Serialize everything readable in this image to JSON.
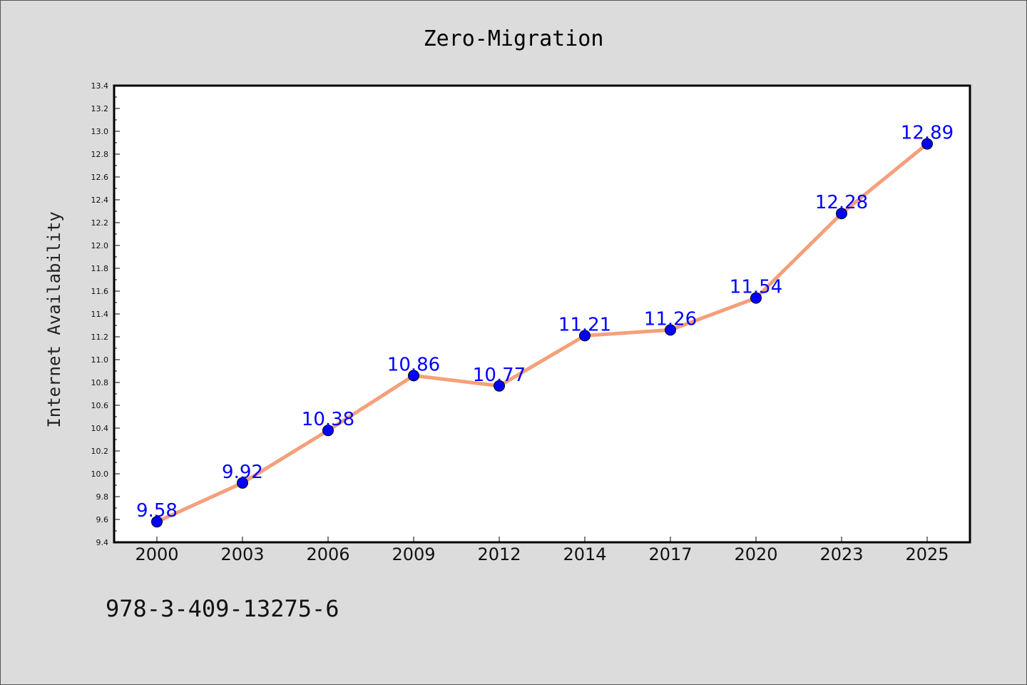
{
  "chart_data": {
    "type": "line",
    "title": "Zero-Migration",
    "xlabel": "",
    "ylabel": "Internet Availability",
    "categories": [
      "2000",
      "2003",
      "2006",
      "2009",
      "2012",
      "2014",
      "2017",
      "2020",
      "2023",
      "2025"
    ],
    "series": [
      {
        "values": [
          9.58,
          9.92,
          10.38,
          10.86,
          10.77,
          11.21,
          11.26,
          11.54,
          12.28,
          12.89
        ],
        "line_color": "#f4a07a",
        "marker_color": "#0000ff"
      }
    ],
    "data_labels": [
      "9.58",
      "9.92",
      "10.38",
      "10.86",
      "10.77",
      "11.21",
      "11.26",
      "11.54",
      "12.28",
      "12.89"
    ],
    "ylim": [
      9.4,
      13.4
    ],
    "yticks": [
      "9.4",
      "9.6",
      "9.8",
      "10.0",
      "10.2",
      "10.4",
      "10.6",
      "10.8",
      "11.0",
      "11.2",
      "11.4",
      "11.6",
      "11.8",
      "12.0",
      "12.2",
      "12.4",
      "12.6",
      "12.8",
      "13.0",
      "13.2",
      "13.4"
    ],
    "grid": false,
    "legend": "none"
  },
  "footer": {
    "isbn": "978-3-409-13275-6"
  },
  "colors": {
    "background": "#dcdcdc",
    "plot_area": "#ffffff",
    "line": "#f4a07a",
    "marker": "#0000ff",
    "data_label": "#0000ff"
  }
}
